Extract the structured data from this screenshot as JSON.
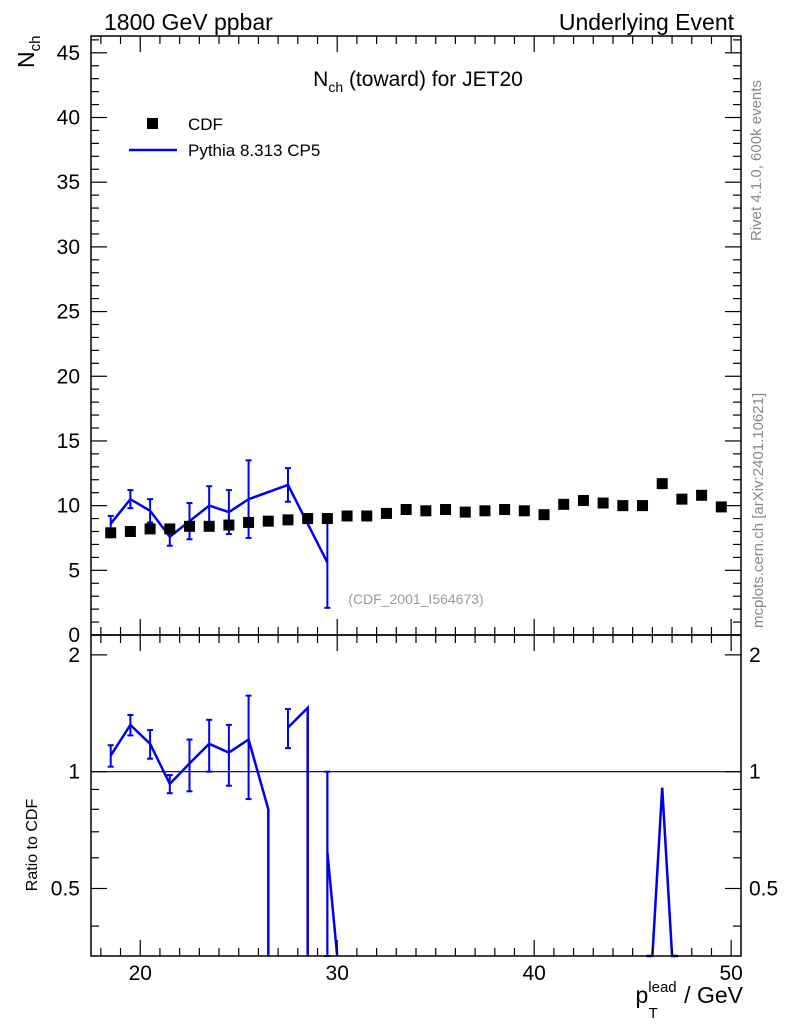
{
  "header": {
    "left": "1800 GeV ppbar",
    "right": "Underlying Event"
  },
  "side_labels": {
    "rivet": "Rivet 4.1.0,  600k events",
    "mcplots": "mcplots.cern.ch [arXiv:2401.10621]"
  },
  "chart_data": {
    "type": "scatter",
    "title_main": "N",
    "title_sub": "ch",
    "title_rest": " (toward) for JET20",
    "watermark": "(CDF_2001_I564673)",
    "xlabel": {
      "p": "p",
      "sup": "lead",
      "sub": "T",
      "rest": " / GeV"
    },
    "ylabel": {
      "main": "N",
      "sub": "ch"
    },
    "ratio_ylabel": "Ratio to CDF",
    "xlim": [
      17.5,
      50.5
    ],
    "ylim": [
      0,
      46.3
    ],
    "ratio_ylim": [
      0.335,
      2.25
    ],
    "x_ticks": [
      "20",
      "30",
      "40",
      "50"
    ],
    "y_ticks": [
      "0",
      "5",
      "10",
      "15",
      "20",
      "25",
      "30",
      "35",
      "40",
      "45"
    ],
    "ratio_ticks": [
      "0.5",
      "1",
      "2"
    ],
    "legend": [
      {
        "name": "CDF",
        "color": "#000000",
        "marker": "square"
      },
      {
        "name": "Pythia 8.313 CP5",
        "color": "#0000ee",
        "marker": "line"
      }
    ],
    "series": [
      {
        "name": "CDF",
        "x": [
          18.5,
          19.5,
          20.5,
          21.5,
          22.5,
          23.5,
          24.5,
          25.5,
          26.5,
          27.5,
          28.5,
          29.5,
          30.5,
          31.5,
          32.5,
          33.5,
          34.5,
          35.5,
          36.5,
          37.5,
          38.5,
          39.5,
          40.5,
          41.5,
          42.5,
          43.5,
          44.5,
          45.5,
          46.5,
          47.5,
          48.5,
          49.5
        ],
        "y": [
          7.9,
          8.0,
          8.2,
          8.2,
          8.4,
          8.4,
          8.5,
          8.7,
          8.8,
          8.9,
          9.0,
          9.0,
          9.2,
          9.2,
          9.4,
          9.7,
          9.6,
          9.7,
          9.5,
          9.6,
          9.7,
          9.6,
          9.3,
          10.1,
          10.4,
          10.2,
          10.0,
          10.0,
          11.7,
          10.5,
          10.8,
          9.9
        ]
      },
      {
        "name": "Pythia 8.313 CP5",
        "x": [
          18.5,
          19.5,
          20.5,
          21.5,
          22.5,
          23.5,
          24.5,
          25.5,
          27.5,
          29.5
        ],
        "y": [
          8.6,
          10.5,
          9.6,
          7.6,
          8.8,
          10.0,
          9.5,
          10.5,
          11.6,
          5.6
        ],
        "yerr": [
          0.6,
          0.7,
          0.9,
          0.7,
          1.4,
          1.5,
          1.7,
          3.0,
          1.3,
          3.5
        ]
      }
    ],
    "ratio": {
      "name": "Pythia 8.313 CP5 / CDF",
      "points": [
        {
          "x": 18.5,
          "y": 1.1,
          "err": 0.07
        },
        {
          "x": 19.5,
          "y": 1.32,
          "err": 0.08
        },
        {
          "x": 20.5,
          "y": 1.18,
          "err": 0.1
        },
        {
          "x": 21.5,
          "y": 0.93,
          "err": 0.05
        },
        {
          "x": 22.5,
          "y": 1.05,
          "err": 0.16
        },
        {
          "x": 23.5,
          "y": 1.18,
          "err": 0.18
        },
        {
          "x": 24.5,
          "y": 1.12,
          "err": 0.2
        },
        {
          "x": 25.5,
          "y": 1.21,
          "err": 0.36
        },
        {
          "x": 26.5,
          "y": 0.8,
          "err": 0
        },
        {
          "x": 27.5,
          "y": 1.3,
          "err": 0.15
        },
        {
          "x": 28.5,
          "y": 1.46,
          "err": 0
        },
        {
          "x": 29.5,
          "y": 0.62,
          "err": 0.38
        }
      ],
      "segments": [
        [
          [
            18.5,
            1.1
          ],
          [
            19.5,
            1.32
          ],
          [
            20.5,
            1.18
          ],
          [
            21.5,
            0.93
          ],
          [
            22.5,
            1.05
          ],
          [
            23.5,
            1.18
          ],
          [
            24.5,
            1.12
          ],
          [
            25.5,
            1.21
          ],
          [
            26.5,
            0.8
          ],
          [
            26.5,
            0.1
          ]
        ],
        [
          [
            27.5,
            1.3
          ],
          [
            28.5,
            1.46
          ],
          [
            28.5,
            0.1
          ]
        ],
        [
          [
            29.5,
            0.62
          ],
          [
            30.0,
            0.2
          ]
        ],
        [
          [
            45.7,
            0.1
          ],
          [
            46.0,
            0.3
          ],
          [
            46.5,
            0.91
          ],
          [
            47.0,
            0.3
          ],
          [
            47.3,
            0.1
          ]
        ]
      ],
      "bars": [
        {
          "x": 29.5,
          "y1": 0.1,
          "y2": 1.0
        }
      ]
    }
  }
}
